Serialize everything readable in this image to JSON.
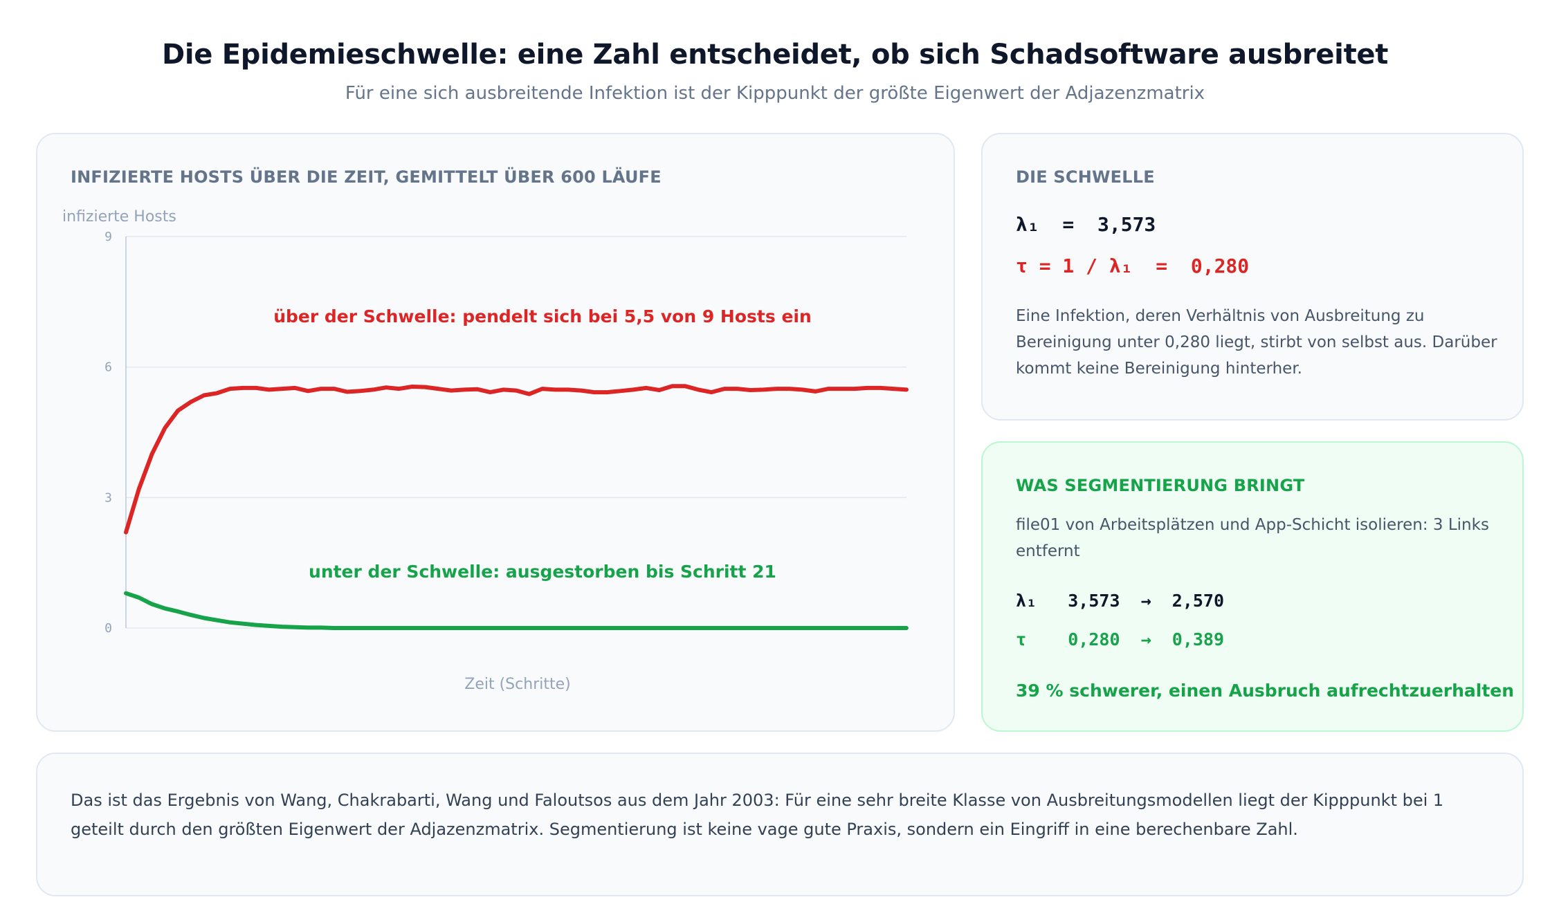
{
  "header": {
    "title": "Die Epidemieschwelle: eine Zahl entscheidet, ob sich Schadsoftware ausbreitet",
    "subtitle": "Für eine sich ausbreitende Infektion ist der Kipppunkt der größte Eigenwert der Adjazenzmatrix"
  },
  "chart_card": {
    "title": "Infizierte Hosts über die Zeit, gemittelt über 600 Läufe"
  },
  "chart_data": {
    "type": "line",
    "title": "Infizierte Hosts über die Zeit, gemittelt über 600 Läufe",
    "xlabel": "Zeit (Schritte)",
    "ylabel": "infizierte Hosts",
    "ylim": [
      0,
      9
    ],
    "yticks": [
      "0",
      "3",
      "6",
      "9"
    ],
    "ytick_values": [
      0,
      3,
      6,
      9
    ],
    "xlim": [
      0,
      60
    ],
    "grid": true,
    "x": [
      0,
      1,
      2,
      3,
      4,
      5,
      6,
      7,
      8,
      9,
      10,
      11,
      12,
      13,
      14,
      15,
      16,
      17,
      18,
      19,
      20,
      21,
      22,
      23,
      24,
      25,
      26,
      27,
      28,
      29,
      30,
      31,
      32,
      33,
      34,
      35,
      36,
      37,
      38,
      39,
      40,
      41,
      42,
      43,
      44,
      45,
      46,
      47,
      48,
      49,
      50,
      51,
      52,
      53,
      54,
      55,
      56,
      57,
      58,
      59,
      60
    ],
    "series": [
      {
        "key": "above",
        "color": "#dc2626",
        "values": [
          2.2,
          3.2,
          4.0,
          4.6,
          5.0,
          5.2,
          5.35,
          5.4,
          5.5,
          5.52,
          5.52,
          5.48,
          5.5,
          5.52,
          5.45,
          5.5,
          5.5,
          5.43,
          5.45,
          5.48,
          5.53,
          5.5,
          5.55,
          5.54,
          5.5,
          5.46,
          5.48,
          5.49,
          5.42,
          5.48,
          5.46,
          5.38,
          5.5,
          5.48,
          5.48,
          5.46,
          5.42,
          5.42,
          5.45,
          5.48,
          5.52,
          5.47,
          5.56,
          5.56,
          5.48,
          5.42,
          5.5,
          5.5,
          5.47,
          5.48,
          5.5,
          5.5,
          5.48,
          5.44,
          5.5,
          5.5,
          5.5,
          5.52,
          5.52,
          5.5,
          5.48
        ]
      },
      {
        "key": "below",
        "color": "#16a34a",
        "values": [
          0.8,
          0.7,
          0.55,
          0.45,
          0.38,
          0.3,
          0.23,
          0.18,
          0.13,
          0.1,
          0.07,
          0.05,
          0.03,
          0.02,
          0.01,
          0.01,
          0.0,
          0.0,
          0.0,
          0.0,
          0.0,
          0.0,
          0.0,
          0.0,
          0.0,
          0.0,
          0.0,
          0.0,
          0.0,
          0.0,
          0.0,
          0.0,
          0.0,
          0.0,
          0.0,
          0.0,
          0.0,
          0.0,
          0.0,
          0.0,
          0.0,
          0.0,
          0.0,
          0.0,
          0.0,
          0.0,
          0.0,
          0.0,
          0.0,
          0.0,
          0.0,
          0.0,
          0.0,
          0.0,
          0.0,
          0.0,
          0.0,
          0.0,
          0.0,
          0.0,
          0.0
        ]
      }
    ],
    "annotations": {
      "above": "über der Schwelle: pendelt sich bei 5,5 von 9 Hosts ein",
      "below": "unter der Schwelle: ausgestorben bis Schritt 21"
    }
  },
  "threshold_card": {
    "title": "Die Schwelle",
    "lambda_line": "λ₁  =  3,573",
    "tau_line": "τ = 1 / λ₁  =  0,280",
    "body": "Eine Infektion, deren Verhältnis von Ausbreitung zu Bereinigung unter 0,280 liegt, stirbt von selbst aus. Darüber kommt keine Bereinigung hinterher."
  },
  "segmentation_card": {
    "title": "Was Segmentierung bringt",
    "body": "file01 von Arbeitsplätzen und App-Schicht isolieren: 3 Links entfernt",
    "lambda_line": "λ₁   3,573  →  2,570",
    "tau_line": "τ    0,280  →  0,389",
    "conclusion": "39 % schwerer, einen Ausbruch aufrechtzuerhalten"
  },
  "footer": {
    "text": "Das ist das Ergebnis von Wang, Chakrabarti, Wang und Faloutsos aus dem Jahr 2003: Für eine sehr breite Klasse von Ausbreitungsmodellen liegt der Kipppunkt bei 1 geteilt durch den größten Eigenwert der Adjazenzmatrix. Segmentierung ist keine vage gute Praxis, sondern ein Eingriff in eine berechenbare Zahl."
  }
}
